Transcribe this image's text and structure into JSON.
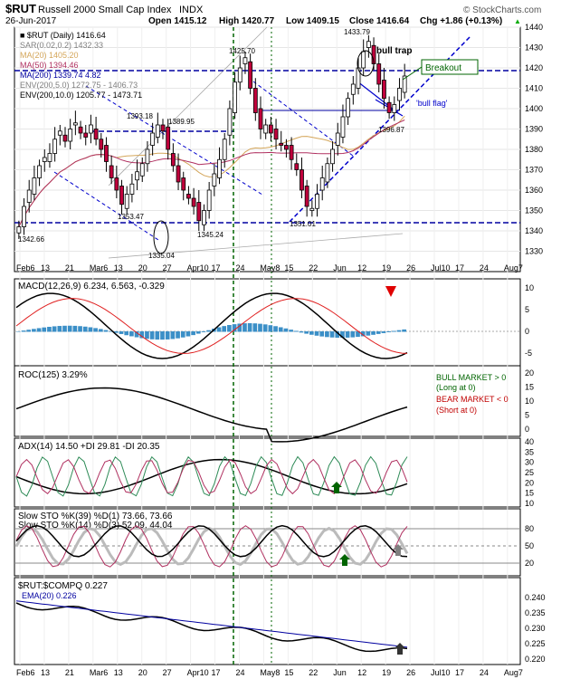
{
  "header": {
    "symbol": "$RUT",
    "name": "Russell 2000 Small Cap Index",
    "exchange": "INDX",
    "brand": "© StockCharts.com",
    "date": "26-Jun-2017",
    "open": "Open 1415.12",
    "high": "High 1420.77",
    "low": "Low 1409.15",
    "close": "Close 1416.64",
    "chg": "Chg +1.86 (+0.13%)",
    "chg_arrow": "▲"
  },
  "price_legend": [
    {
      "text": "■ $RUT (Daily) 1416.64",
      "color": "#000000"
    },
    {
      "text": "SAR(0.02,0.2) 1432.33",
      "color": "#7f7f7f"
    },
    {
      "text": "MA(20) 1405.20",
      "color": "#d4a65a"
    },
    {
      "text": "MA(50) 1394.46",
      "color": "#b03060"
    },
    {
      "text": "MA(200) 1339.74 4.82",
      "color": "#0000a0"
    },
    {
      "text": "ENV(200,5.0) 1272.75 - 1406.73",
      "color": "#7f7f7f"
    },
    {
      "text": "ENV(200,10.0) 1205.77 - 1473.71",
      "color": "#000000"
    }
  ],
  "annotations": {
    "bull_trap": "bull trap",
    "breakout": "Breakout",
    "bull_flag": "'bull flag'",
    "p1425": "1425.70",
    "p1433": "1433.79",
    "p1393": "1393.18",
    "p1389": "1389.95",
    "p1353": "1353.47",
    "p1335": "1335.04",
    "p1345": "1345.24",
    "p1342": "1342.66",
    "p1351": "1351.01",
    "p1396": "1396.87"
  },
  "x_axis": [
    "Feb6",
    "13",
    "21",
    "Mar6",
    "13",
    "20",
    "27",
    "Apr10",
    "17",
    "24",
    "May8",
    "15",
    "22",
    "Jun",
    "12",
    "19",
    "26",
    "Jul10",
    "17",
    "24",
    "Aug7"
  ],
  "panels": {
    "macd": {
      "title": "MACD(12,26,9) 6.234, 6.563, -0.329",
      "ticks": [
        "10",
        "5",
        "0",
        "-5"
      ]
    },
    "roc": {
      "title": "ROC(125) 3.29%",
      "ticks": [
        "20",
        "15",
        "10",
        "5",
        "0"
      ],
      "bull": "BULL MARKET > 0",
      "bull2": "(Long at 0)",
      "bear": "BEAR MARKET < 0",
      "bear2": "(Short at 0)"
    },
    "adx": {
      "title": "ADX(14) 14.50 +DI 29.81 -DI 20.35",
      "ticks": [
        "40",
        "35",
        "30",
        "25",
        "20",
        "15",
        "10"
      ]
    },
    "sto": {
      "title1": "Slow STO %K(39) %D(1) 73.66, 73.66",
      "title2": "Slow STO %K(14) %D(3) 52.09, 44.04",
      "ticks": [
        "80",
        "50",
        "20"
      ]
    },
    "ratio": {
      "title": "$RUT:$COMPQ 0.227",
      "ema": "EMA(20) 0.226",
      "ticks": [
        "0.240",
        "0.235",
        "0.230",
        "0.225",
        "0.220"
      ]
    }
  },
  "chart_data": {
    "type": "candlestick",
    "title": "$RUT Russell 2000 Small Cap Index INDX",
    "ylim": [
      1320,
      1440
    ],
    "yticks": [
      1330,
      1340,
      1350,
      1360,
      1370,
      1380,
      1390,
      1400,
      1410,
      1420,
      1430,
      1440
    ],
    "closes": [
      1342,
      1352,
      1360,
      1366,
      1372,
      1376,
      1378,
      1385,
      1389,
      1384,
      1390,
      1393,
      1388,
      1386,
      1392,
      1385,
      1380,
      1374,
      1366,
      1360,
      1353,
      1358,
      1363,
      1369,
      1373,
      1380,
      1388,
      1392,
      1389,
      1380,
      1372,
      1364,
      1360,
      1356,
      1352,
      1345,
      1350,
      1360,
      1368,
      1375,
      1385,
      1400,
      1413,
      1420,
      1425,
      1410,
      1398,
      1390,
      1392,
      1388,
      1385,
      1382,
      1380,
      1375,
      1370,
      1360,
      1352,
      1351,
      1358,
      1366,
      1373,
      1380,
      1388,
      1396,
      1405,
      1412,
      1420,
      1428,
      1433,
      1422,
      1412,
      1405,
      1398,
      1402,
      1410,
      1416
    ],
    "horizontal_levels": [
      1420,
      1390,
      1345
    ],
    "macd_ticks": [
      10,
      5,
      0,
      -5
    ],
    "adx_ticks": [
      40,
      35,
      30,
      25,
      20,
      15,
      10
    ]
  }
}
